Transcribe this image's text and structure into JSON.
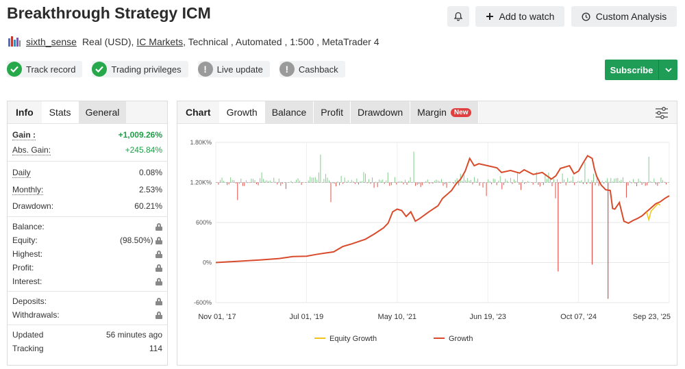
{
  "header": {
    "title": "Breakthrough Strategy ICM",
    "add_watch": "Add to watch",
    "custom_analysis": "Custom Analysis"
  },
  "meta": {
    "username": "sixth_sense",
    "account": "Real (USD),",
    "broker": "IC Markets",
    "details": ", Technical , Automated , 1:500 , MetaTrader 4"
  },
  "badges": [
    {
      "label": "Track record",
      "state": "ok"
    },
    {
      "label": "Trading privileges",
      "state": "ok"
    },
    {
      "label": "Live update",
      "state": "warn"
    },
    {
      "label": "Cashback",
      "state": "warn"
    }
  ],
  "subscribe": {
    "label": "Subscribe"
  },
  "stats_panel": {
    "tabs": [
      "Info",
      "Stats",
      "General"
    ],
    "rows1": [
      {
        "label": "Gain :",
        "value": "+1,009.26%"
      },
      {
        "label": "Abs. Gain:",
        "value": "+245.84%"
      }
    ],
    "rows2": [
      {
        "label": "Daily",
        "value": "0.08%"
      },
      {
        "label": "Monthly:",
        "value": "2.53%"
      },
      {
        "label": "Drawdown:",
        "value": "60.21%"
      }
    ],
    "rows3": [
      {
        "label": "Balance:",
        "value": ""
      },
      {
        "label": "Equity:",
        "value": "(98.50%)"
      },
      {
        "label": "Highest:",
        "value": ""
      },
      {
        "label": "Profit:",
        "value": ""
      },
      {
        "label": "Interest:",
        "value": ""
      }
    ],
    "rows4": [
      {
        "label": "Deposits:",
        "value": ""
      },
      {
        "label": "Withdrawals:",
        "value": ""
      }
    ],
    "rows5": [
      {
        "label": "Updated",
        "value": "56 minutes ago"
      },
      {
        "label": "Tracking",
        "value": "114"
      }
    ]
  },
  "chart_panel": {
    "tabs": [
      "Chart",
      "Growth",
      "Balance",
      "Profit",
      "Drawdown",
      "Margin"
    ],
    "new_badge": "New"
  },
  "colors": {
    "growth": "#d94a2b",
    "equity_growth": "#f0c419",
    "profit_pos": "#7fce8a",
    "profit_neg": "#e0504a",
    "brand_green": "#1f9d57"
  },
  "chart_data": {
    "type": "line",
    "y_ticks": [
      "1.80K%",
      "1.20K%",
      "600%",
      "0%",
      "-600%"
    ],
    "y_tick_values": [
      1800,
      1200,
      600,
      0,
      -600
    ],
    "ylim": [
      -600,
      1800
    ],
    "x_ticks": [
      "Nov 01, '17",
      "Jul 01, '19",
      "May 10, '21",
      "Jun 19, '23",
      "Oct 07, '24",
      "Sep 23, '25"
    ],
    "legend": [
      "Equity Growth",
      "Growth"
    ],
    "series": [
      {
        "name": "Growth",
        "points": [
          [
            0,
            0
          ],
          [
            0.05,
            20
          ],
          [
            0.1,
            40
          ],
          [
            0.14,
            60
          ],
          [
            0.17,
            90
          ],
          [
            0.2,
            95
          ],
          [
            0.22,
            120
          ],
          [
            0.24,
            140
          ],
          [
            0.26,
            160
          ],
          [
            0.28,
            240
          ],
          [
            0.3,
            280
          ],
          [
            0.33,
            350
          ],
          [
            0.35,
            430
          ],
          [
            0.37,
            520
          ],
          [
            0.38,
            590
          ],
          [
            0.39,
            760
          ],
          [
            0.4,
            800
          ],
          [
            0.41,
            780
          ],
          [
            0.42,
            690
          ],
          [
            0.43,
            760
          ],
          [
            0.44,
            620
          ],
          [
            0.45,
            660
          ],
          [
            0.47,
            760
          ],
          [
            0.49,
            850
          ],
          [
            0.5,
            960
          ],
          [
            0.52,
            1080
          ],
          [
            0.53,
            1180
          ],
          [
            0.54,
            1250
          ],
          [
            0.55,
            1370
          ],
          [
            0.56,
            1560
          ],
          [
            0.57,
            1450
          ],
          [
            0.58,
            1480
          ],
          [
            0.6,
            1450
          ],
          [
            0.62,
            1420
          ],
          [
            0.63,
            1350
          ],
          [
            0.65,
            1380
          ],
          [
            0.67,
            1340
          ],
          [
            0.68,
            1390
          ],
          [
            0.7,
            1320
          ],
          [
            0.72,
            1350
          ],
          [
            0.74,
            1250
          ],
          [
            0.75,
            1300
          ],
          [
            0.76,
            1410
          ],
          [
            0.78,
            1450
          ],
          [
            0.79,
            1330
          ],
          [
            0.8,
            1370
          ],
          [
            0.81,
            1490
          ],
          [
            0.82,
            1600
          ],
          [
            0.83,
            1560
          ],
          [
            0.835,
            1400
          ],
          [
            0.84,
            1290
          ],
          [
            0.85,
            1160
          ],
          [
            0.86,
            1090
          ],
          [
            0.87,
            1080
          ],
          [
            0.875,
            810
          ],
          [
            0.88,
            800
          ],
          [
            0.89,
            900
          ],
          [
            0.9,
            620
          ],
          [
            0.91,
            590
          ],
          [
            0.92,
            630
          ],
          [
            0.93,
            660
          ],
          [
            0.94,
            700
          ],
          [
            0.95,
            760
          ],
          [
            0.96,
            820
          ],
          [
            0.97,
            880
          ],
          [
            0.98,
            910
          ],
          [
            0.99,
            960
          ],
          [
            1.0,
            1000
          ]
        ]
      },
      {
        "name": "Equity Growth",
        "points": [
          [
            0.95,
            760
          ],
          [
            0.955,
            640
          ],
          [
            0.96,
            770
          ],
          [
            0.975,
            880
          ],
          [
            0.98,
            860
          ]
        ]
      }
    ]
  }
}
